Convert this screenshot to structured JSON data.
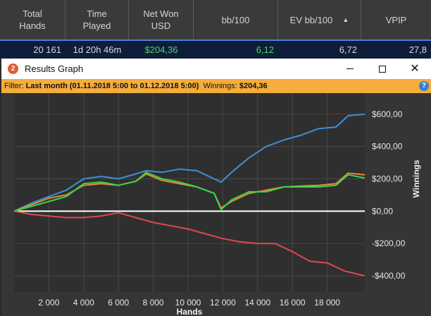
{
  "stats_header": {
    "columns": [
      "Total\nHands",
      "Time\nPlayed",
      "Net Won\nUSD",
      "bb/100",
      "EV bb/100",
      "VPIP"
    ],
    "sort_indicator": "▲"
  },
  "stats_row": {
    "total_hands": "20 161",
    "time_played": "1d 20h 46m",
    "net_won": "$204,36",
    "bb_100": "6,12",
    "ev_bb_100": "6,72",
    "vpip": "27,8"
  },
  "window": {
    "title": "Results Graph",
    "icon_glyph": "2"
  },
  "filter": {
    "label": "Filter:",
    "value": "Last month (01.11.2018 5:00 to 01.12.2018 5:00)",
    "winnings_label": "Winnings:",
    "winnings_value": "$204,36",
    "help_glyph": "?"
  },
  "colors": {
    "blue": "#3d8fd9",
    "orange": "#e8893a",
    "green": "#33d64a",
    "red": "#e04848",
    "zero_line": "#ffffff",
    "grid": "#474747"
  },
  "chart_data": {
    "type": "line",
    "xlabel": "Hands",
    "ylabel": "Winnings",
    "x_ticks": [
      2000,
      4000,
      6000,
      8000,
      10000,
      12000,
      14000,
      16000,
      18000
    ],
    "x_tick_labels": [
      "2 000",
      "4 000",
      "6 000",
      "8 000",
      "10 000",
      "12 000",
      "14 000",
      "16 000",
      "18 000"
    ],
    "y_ticks": [
      600,
      400,
      200,
      0,
      -200,
      -400
    ],
    "y_tick_labels": [
      "$600,00",
      "$400,00",
      "$200,00",
      "$0,00",
      "-$200,00",
      "-$400,00"
    ],
    "xlim": [
      0,
      20161
    ],
    "ylim": [
      -500,
      730
    ],
    "grid": true,
    "series": [
      {
        "key": "blue",
        "x": [
          0,
          1000,
          2000,
          3000,
          4000,
          5000,
          6000,
          7000,
          7600,
          8500,
          9500,
          10500,
          11500,
          11900,
          12500,
          13500,
          14500,
          15500,
          16500,
          17500,
          18500,
          19200,
          20161
        ],
        "y": [
          0,
          50,
          90,
          130,
          200,
          215,
          200,
          230,
          250,
          240,
          260,
          250,
          200,
          180,
          240,
          330,
          400,
          440,
          470,
          510,
          520,
          590,
          600
        ]
      },
      {
        "key": "orange",
        "x": [
          0,
          1000,
          2000,
          3000,
          4000,
          5000,
          6000,
          7000,
          7600,
          8500,
          9500,
          10500,
          11500,
          11900,
          12500,
          13500,
          14500,
          15500,
          16500,
          17500,
          18500,
          19200,
          20161
        ],
        "y": [
          0,
          40,
          80,
          100,
          160,
          170,
          160,
          185,
          230,
          190,
          170,
          150,
          110,
          20,
          60,
          110,
          130,
          150,
          155,
          160,
          170,
          235,
          225
        ]
      },
      {
        "key": "green",
        "x": [
          0,
          1000,
          2000,
          3000,
          4000,
          5000,
          6000,
          7000,
          7600,
          8500,
          9500,
          10500,
          11500,
          11900,
          12500,
          13500,
          14500,
          15500,
          16500,
          17500,
          18500,
          19200,
          20161
        ],
        "y": [
          0,
          30,
          60,
          90,
          170,
          180,
          160,
          185,
          240,
          200,
          180,
          150,
          110,
          10,
          70,
          120,
          120,
          150,
          150,
          150,
          160,
          225,
          205
        ]
      },
      {
        "key": "red",
        "x": [
          0,
          1000,
          2000,
          3000,
          4000,
          5000,
          6000,
          7000,
          8000,
          9000,
          10000,
          11000,
          12000,
          13000,
          14000,
          15000,
          16000,
          17000,
          18000,
          19000,
          20161
        ],
        "y": [
          0,
          -20,
          -30,
          -40,
          -40,
          -30,
          -10,
          -40,
          -70,
          -90,
          -110,
          -140,
          -170,
          -190,
          -200,
          -200,
          -250,
          -310,
          -320,
          -370,
          -400
        ]
      }
    ]
  }
}
